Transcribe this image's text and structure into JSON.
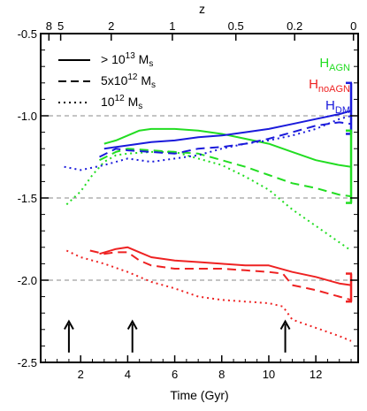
{
  "chart_data": {
    "type": "line",
    "title": "",
    "xlabel": "Time (Gyr)",
    "ylabel": "",
    "top_axis_label": "z",
    "xlim": [
      0.3,
      13.8
    ],
    "ylim": [
      -2.5,
      -0.5
    ],
    "x_ticks": [
      "2",
      "4",
      "6",
      "8",
      "10",
      "12"
    ],
    "x_tick_values": [
      2,
      4,
      6,
      8,
      10,
      12
    ],
    "y_ticks": [
      "-0.5",
      "-1.0",
      "-1.5",
      "-2.0",
      "-2.5"
    ],
    "y_tick_values": [
      -0.5,
      -1.0,
      -1.5,
      -2.0,
      -2.5
    ],
    "top_ticks": [
      {
        "label": "8",
        "t": 0.65
      },
      {
        "label": "5",
        "t": 1.15
      },
      {
        "label": "2",
        "t": 3.3
      },
      {
        "label": "1",
        "t": 5.9
      },
      {
        "label": "0.5",
        "t": 8.6
      },
      {
        "label": "0.2",
        "t": 11.1
      },
      {
        "label": "0",
        "t": 13.6
      }
    ],
    "reference_lines": [
      -1.0,
      -1.5,
      -2.0
    ],
    "arrows_x": [
      1.5,
      4.2,
      10.7
    ],
    "legend": {
      "placement": "top-left",
      "entries": [
        {
          "style": "solid",
          "label": "> 10",
          "sup": "13",
          "unit": " M",
          "unit_sub": "s"
        },
        {
          "style": "dashed",
          "label": "5x10",
          "sup": "12",
          "unit": " M",
          "unit_sub": "s"
        },
        {
          "style": "dotted",
          "label": "10",
          "sup": "12",
          "unit": " M",
          "unit_sub": "s"
        }
      ]
    },
    "group_labels": [
      {
        "main": "H",
        "sub": "AGN",
        "color": "#22dd22"
      },
      {
        "main": "H",
        "sub": "noAGN",
        "color": "#ee2222"
      },
      {
        "main": "H",
        "sub": "DM",
        "color": "#1a1adb"
      }
    ],
    "series": [
      {
        "group": "AGN",
        "style": "solid",
        "color": "#22dd22",
        "x": [
          3.0,
          3.5,
          4.0,
          4.5,
          5.0,
          6.0,
          7.0,
          8.0,
          9.0,
          10.0,
          11.0,
          12.0,
          13.0,
          13.5
        ],
        "y": [
          -1.17,
          -1.15,
          -1.12,
          -1.09,
          -1.08,
          -1.08,
          -1.09,
          -1.11,
          -1.14,
          -1.17,
          -1.22,
          -1.27,
          -1.3,
          -1.31
        ]
      },
      {
        "group": "AGN",
        "style": "dashed",
        "color": "#22dd22",
        "x": [
          2.8,
          3.5,
          4.0,
          5.0,
          6.0,
          7.0,
          8.0,
          9.0,
          10.0,
          11.0,
          12.0,
          13.0,
          13.5
        ],
        "y": [
          -1.27,
          -1.22,
          -1.2,
          -1.21,
          -1.22,
          -1.23,
          -1.27,
          -1.31,
          -1.36,
          -1.41,
          -1.44,
          -1.48,
          -1.49
        ]
      },
      {
        "group": "AGN",
        "style": "dotted",
        "color": "#22dd22",
        "x": [
          1.4,
          2.0,
          2.5,
          3.0,
          3.5,
          4.0,
          5.0,
          6.0,
          7.0,
          8.0,
          9.0,
          10.0,
          11.0,
          12.0,
          13.0,
          13.5
        ],
        "y": [
          -1.54,
          -1.46,
          -1.36,
          -1.28,
          -1.24,
          -1.23,
          -1.22,
          -1.22,
          -1.26,
          -1.3,
          -1.37,
          -1.45,
          -1.57,
          -1.67,
          -1.77,
          -1.82
        ]
      },
      {
        "group": "DM",
        "style": "solid",
        "color": "#1a1adb",
        "x": [
          3.0,
          4.0,
          5.0,
          6.0,
          7.0,
          8.0,
          9.0,
          10.0,
          11.0,
          12.0,
          13.0,
          13.5
        ],
        "y": [
          -1.2,
          -1.18,
          -1.16,
          -1.15,
          -1.13,
          -1.12,
          -1.1,
          -1.08,
          -1.05,
          -1.02,
          -0.99,
          -0.97
        ]
      },
      {
        "group": "DM",
        "style": "dashed",
        "color": "#1a1adb",
        "x": [
          2.8,
          3.5,
          4.0,
          5.0,
          6.0,
          7.0,
          8.0,
          9.0,
          10.0,
          11.0,
          12.0,
          13.0,
          13.5
        ],
        "y": [
          -1.25,
          -1.2,
          -1.21,
          -1.22,
          -1.23,
          -1.2,
          -1.19,
          -1.17,
          -1.14,
          -1.1,
          -1.06,
          -1.04,
          -1.05
        ]
      },
      {
        "group": "DM",
        "style": "dotted",
        "color": "#1a1adb",
        "x": [
          1.3,
          2.0,
          3.0,
          4.0,
          5.0,
          6.0,
          7.0,
          8.0,
          9.0,
          10.0,
          11.0,
          12.0,
          13.0,
          13.5
        ],
        "y": [
          -1.31,
          -1.33,
          -1.3,
          -1.26,
          -1.28,
          -1.26,
          -1.24,
          -1.2,
          -1.17,
          -1.15,
          -1.12,
          -1.08,
          -1.02,
          -1.0
        ]
      },
      {
        "group": "noAGN",
        "style": "solid",
        "color": "#ee2222",
        "x": [
          2.8,
          3.5,
          4.0,
          4.5,
          5.0,
          6.0,
          7.0,
          8.0,
          9.0,
          10.0,
          11.0,
          12.0,
          13.0,
          13.5
        ],
        "y": [
          -1.84,
          -1.81,
          -1.8,
          -1.83,
          -1.86,
          -1.88,
          -1.89,
          -1.9,
          -1.91,
          -1.91,
          -1.95,
          -1.98,
          -2.02,
          -2.03
        ]
      },
      {
        "group": "noAGN",
        "style": "dashed",
        "color": "#ee2222",
        "x": [
          2.4,
          3.0,
          3.5,
          4.0,
          4.5,
          5.0,
          6.0,
          7.0,
          8.0,
          9.0,
          10.0,
          10.6,
          11.0,
          12.0,
          13.0,
          13.5
        ],
        "y": [
          -1.82,
          -1.84,
          -1.83,
          -1.83,
          -1.88,
          -1.91,
          -1.93,
          -1.93,
          -1.93,
          -1.94,
          -1.95,
          -1.96,
          -2.03,
          -2.06,
          -2.1,
          -2.12
        ]
      },
      {
        "group": "noAGN",
        "style": "dotted",
        "color": "#ee2222",
        "x": [
          1.4,
          2.0,
          3.0,
          4.0,
          5.0,
          6.0,
          7.0,
          8.0,
          9.0,
          10.0,
          10.6,
          11.0,
          12.0,
          13.0,
          13.5
        ],
        "y": [
          -1.82,
          -1.86,
          -1.9,
          -1.95,
          -2.01,
          -2.05,
          -2.1,
          -2.12,
          -2.13,
          -2.14,
          -2.16,
          -2.24,
          -2.29,
          -2.34,
          -2.37
        ]
      }
    ],
    "error_bars": [
      {
        "group": "DM",
        "color": "#1a1adb",
        "x": 13.5,
        "low": -1.11,
        "high": -0.8
      },
      {
        "group": "AGN",
        "color": "#22dd22",
        "x": 13.5,
        "low": -1.53,
        "high": -1.09
      },
      {
        "group": "noAGN",
        "color": "#ee2222",
        "x": 13.5,
        "low": -2.13,
        "high": -1.96
      }
    ]
  }
}
